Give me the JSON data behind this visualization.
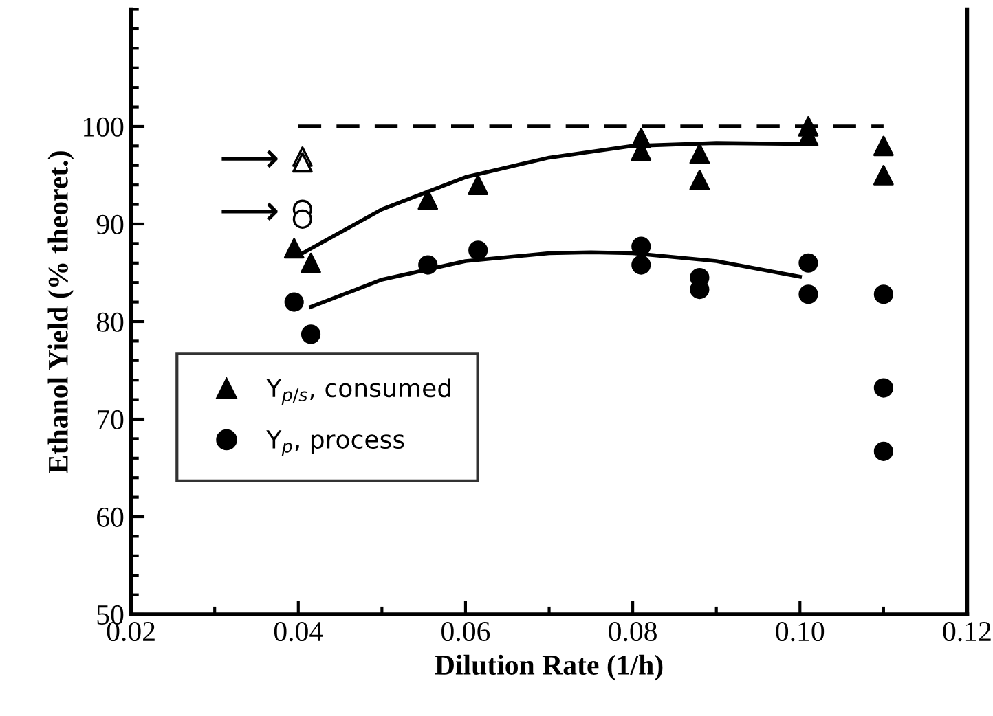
{
  "chart_data": {
    "type": "scatter",
    "xlabel": "Dilution Rate (1/h)",
    "ylabel": "Ethanol Yield (% theoret.)",
    "xlim": [
      0.02,
      0.12
    ],
    "ylim": [
      50,
      112
    ],
    "xticks": [
      0.02,
      0.04,
      0.06,
      0.08,
      {
        "value": 0.1,
        "label": "0.10"
      },
      0.12
    ],
    "yticks": [
      50,
      60,
      70,
      80,
      90,
      100
    ],
    "grid": false,
    "legend": "bottom left",
    "series": [
      {
        "name": "Y$_{p/s}$, consumed",
        "marker": "triangle",
        "color": "#000000",
        "x": [
          0.0395,
          0.0415,
          0.0555,
          0.0615,
          0.081,
          0.081,
          0.088,
          0.088,
          0.101,
          0.101,
          0.11,
          0.11
        ],
        "values": [
          87.5,
          86,
          92.5,
          94,
          97.5,
          98.8,
          97.2,
          94.5,
          99,
          100,
          98,
          95
        ]
      },
      {
        "name": "Y$_{p}$, process",
        "marker": "circle",
        "color": "#000000",
        "x": [
          0.0395,
          0.0415,
          0.0555,
          0.0615,
          0.081,
          0.081,
          0.088,
          0.088,
          0.101,
          0.101,
          0.11,
          0.11,
          0.11
        ],
        "values": [
          82,
          78.7,
          85.8,
          87.3,
          87.7,
          85.8,
          84.5,
          83.3,
          86,
          82.8,
          82.8,
          73.2,
          66.7
        ]
      },
      {
        "marker": "triangle",
        "color": "#ffffff",
        "x": [
          0.0405,
          0.0405
        ],
        "values": [
          96.9,
          96.3
        ]
      },
      {
        "marker": "circle",
        "color": "#ffffff",
        "x": [
          0.0405,
          0.0405
        ],
        "values": [
          91.5,
          90.5
        ]
      },
      {
        "type": "line",
        "color": "#000000",
        "line_style": "solid",
        "x": [
          0.0405,
          0.05,
          0.06,
          0.07,
          0.08,
          0.09,
          0.1
        ],
        "values": [
          87,
          91.5,
          94.8,
          96.8,
          98,
          98.3,
          98.2
        ]
      },
      {
        "type": "line",
        "color": "#000000",
        "line_style": "solid",
        "x": [
          0.0415,
          0.05,
          0.06,
          0.07,
          0.075,
          0.08,
          0.09,
          0.1
        ],
        "values": [
          81.5,
          84.3,
          86.2,
          87,
          87.1,
          87,
          86.2,
          84.6
        ]
      },
      {
        "type": "line",
        "color": "#000000",
        "line_style": "dashed",
        "x": [
          0.04,
          0.11
        ],
        "values": [
          100,
          100
        ]
      }
    ],
    "annotations": [
      {
        "text": "⟶",
        "x": 0.0405,
        "y": 96.9
      },
      {
        "text": "⟶",
        "x": 0.0405,
        "y": 91.5
      }
    ]
  }
}
